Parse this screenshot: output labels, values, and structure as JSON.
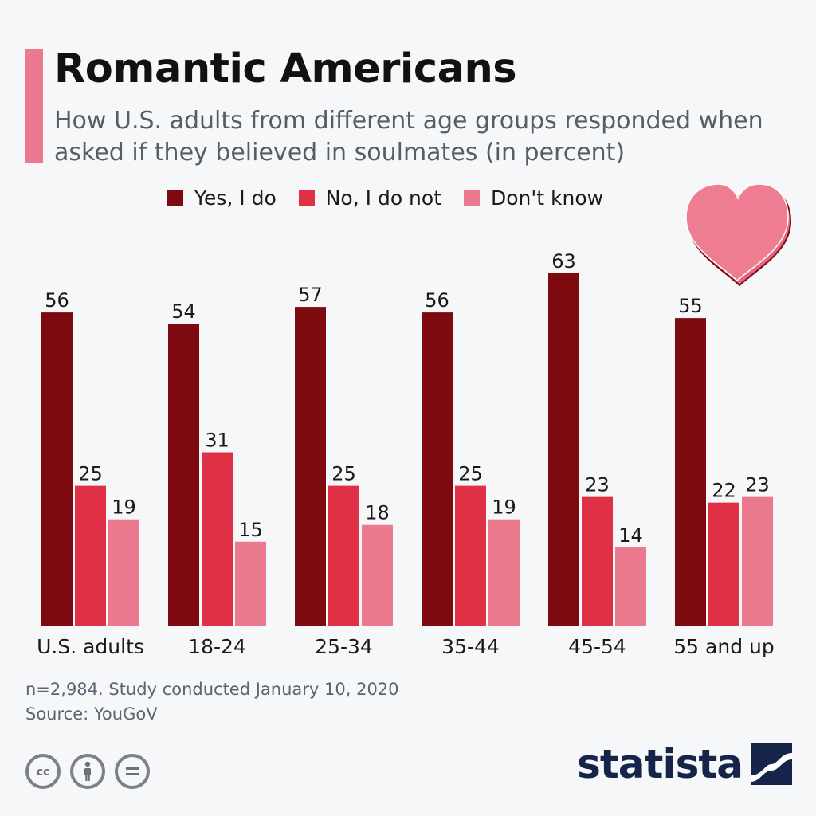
{
  "header": {
    "title": "Romantic Americans",
    "subtitle": "How U.S. adults from different age groups responded when asked if they believed in soulmates (in percent)"
  },
  "colors": {
    "yes": "#7c0a0e",
    "no": "#e03046",
    "dont_know": "#ec7a8f",
    "accent": "#ec7a8f",
    "brand": "#16244a"
  },
  "chart_data": {
    "type": "bar",
    "title": "Romantic Americans",
    "subtitle": "How U.S. adults from different age groups responded when asked if they believed in soulmates (in percent)",
    "xlabel": "",
    "ylabel": "",
    "ylim": [
      0,
      63
    ],
    "grid": false,
    "legend_position": "top",
    "categories": [
      "U.S. adults",
      "18-24",
      "25-34",
      "35-44",
      "45-54",
      "55 and up"
    ],
    "series": [
      {
        "name": "Yes, I do",
        "values": [
          56,
          54,
          57,
          56,
          63,
          55
        ]
      },
      {
        "name": "No, I do not",
        "values": [
          25,
          31,
          25,
          25,
          23,
          22
        ]
      },
      {
        "name": "Don't know",
        "values": [
          19,
          15,
          18,
          19,
          14,
          23
        ]
      }
    ]
  },
  "footer": {
    "note": "n=2,984. Study conducted January 10, 2020",
    "source": "Source: YouGoV",
    "brand": "statista",
    "license_icons": [
      "cc-icon",
      "attribution-icon",
      "no-derivatives-icon"
    ]
  }
}
